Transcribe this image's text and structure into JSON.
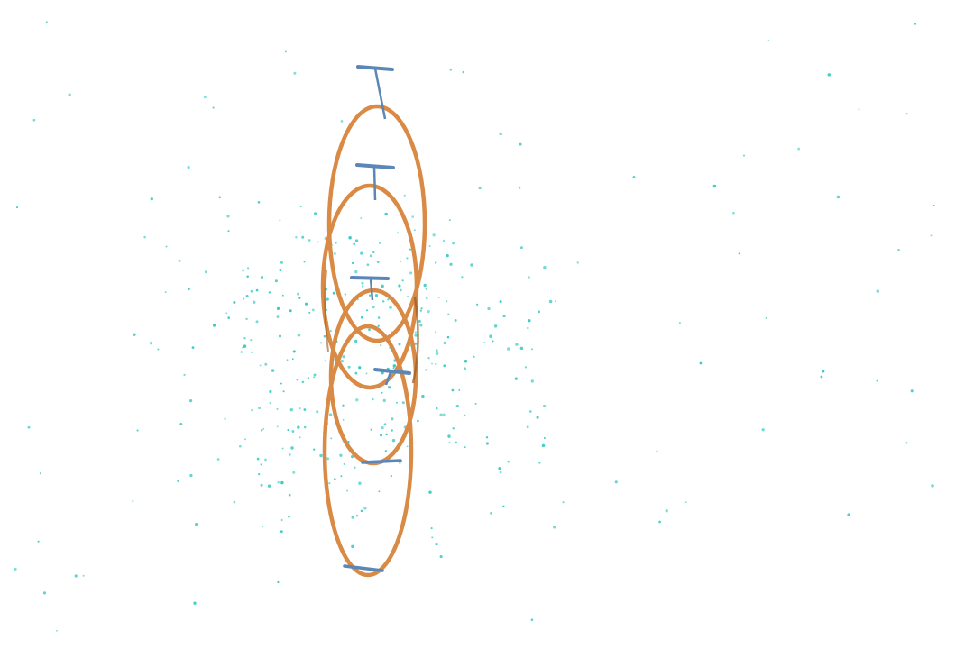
{
  "image": {
    "subject": "",
    "background_color": "#ffffff",
    "band_color": "#d98a45",
    "band_shadow_color": "#9a5a22",
    "pin_color": "#5b86b8",
    "speck_color": "#2fc8c0",
    "band_count": 4,
    "pin_count": 6
  }
}
